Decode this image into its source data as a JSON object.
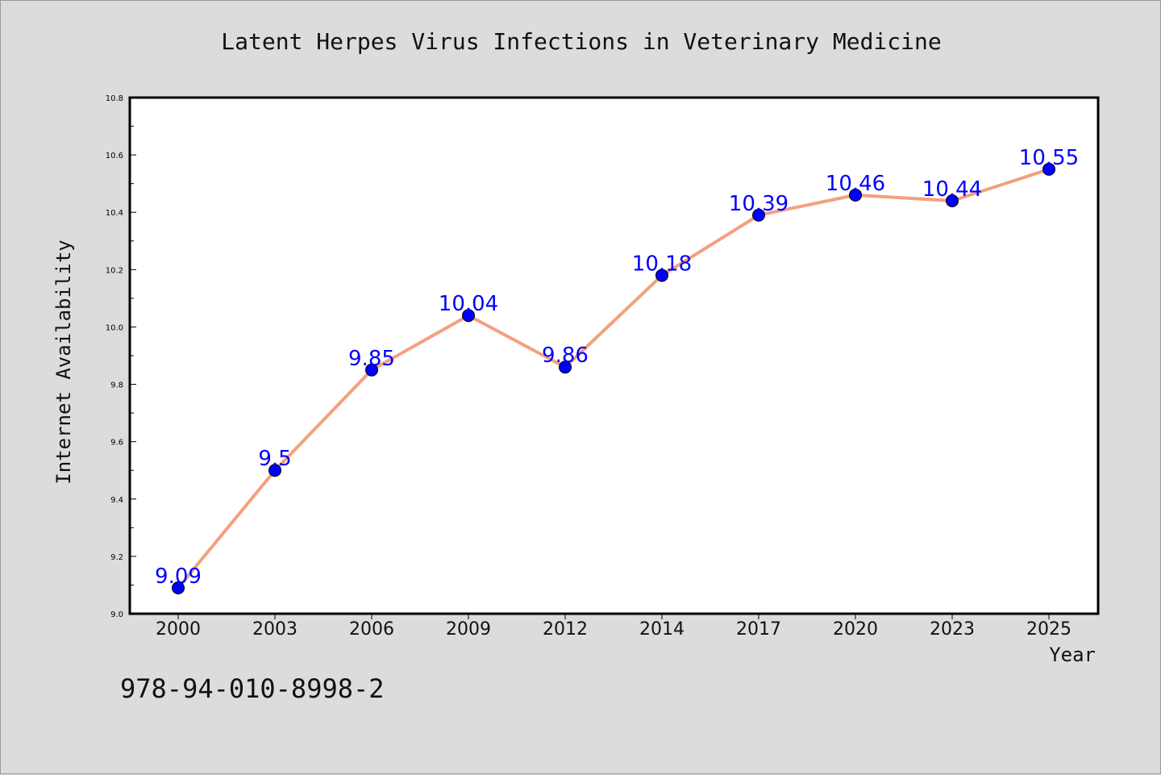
{
  "chart_data": {
    "type": "line",
    "title": "Latent Herpes Virus Infections in Veterinary Medicine",
    "xlabel": "Year",
    "ylabel": "Internet Availability",
    "categories": [
      "2000",
      "2003",
      "2006",
      "2009",
      "2012",
      "2014",
      "2017",
      "2020",
      "2023",
      "2025"
    ],
    "series": [
      {
        "values": [
          9.09,
          9.5,
          9.85,
          10.04,
          9.86,
          10.18,
          10.39,
          10.46,
          10.44,
          10.55
        ],
        "labels": [
          "9.09",
          "9.5",
          "9.85",
          "10.04",
          "9.86",
          "10.18",
          "10.39",
          "10.46",
          "10.44",
          "10.55"
        ],
        "line_color": "#f4a07e",
        "marker_color": "#0000ff"
      }
    ],
    "ylim": [
      9.0,
      10.8
    ],
    "yticks": [
      "9.0",
      "9.2",
      "9.4",
      "9.6",
      "9.8",
      "10.0",
      "10.2",
      "10.4",
      "10.6",
      "10.8"
    ],
    "grid": false,
    "background": "#dcdcdc",
    "plot_background": "#ffffff"
  },
  "annotation": "978-94-010-8998-2"
}
